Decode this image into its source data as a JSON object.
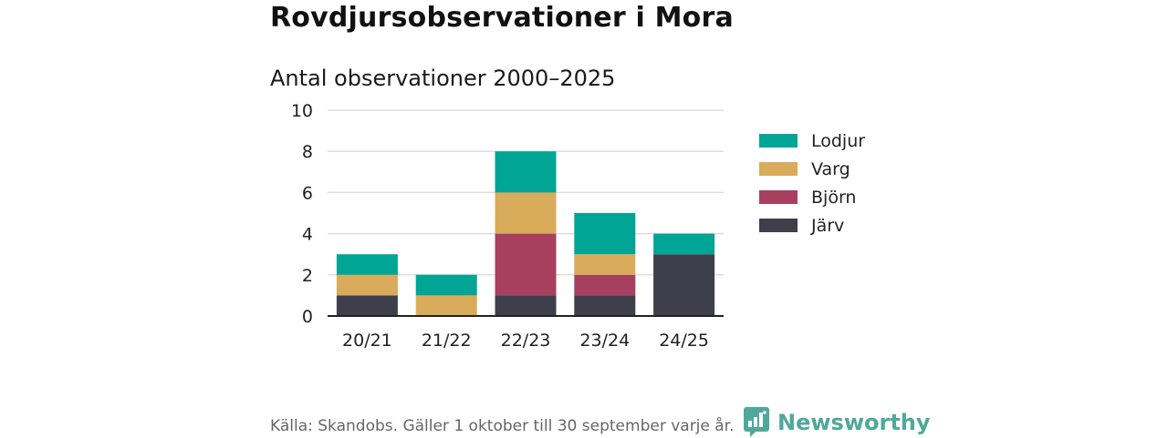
{
  "header": {
    "title": "Rovdjursobservationer i Mora",
    "subtitle": "Antal observationer 2000–2025"
  },
  "chart_data": {
    "type": "bar",
    "stacked": true,
    "title": "Antal observationer 2000–2025",
    "xlabel": "",
    "ylabel": "",
    "ylim": [
      0,
      10
    ],
    "yticks": [
      0,
      2,
      4,
      6,
      8,
      10
    ],
    "grid": true,
    "legend_position": "right",
    "categories": [
      "20/21",
      "21/22",
      "22/23",
      "23/24",
      "24/25"
    ],
    "series": [
      {
        "name": "Järv",
        "color": "#3f3f4b",
        "values": [
          1,
          0,
          1,
          1,
          3
        ]
      },
      {
        "name": "Björn",
        "color": "#a6405e",
        "values": [
          0,
          0,
          3,
          1,
          0
        ]
      },
      {
        "name": "Varg",
        "color": "#d8ac5a",
        "values": [
          1,
          1,
          2,
          1,
          0
        ]
      },
      {
        "name": "Lodjur",
        "color": "#00a596",
        "values": [
          1,
          1,
          2,
          2,
          1
        ]
      }
    ],
    "legend_order": [
      "Lodjur",
      "Varg",
      "Björn",
      "Järv"
    ]
  },
  "footer": {
    "source": "Källa: Skandobs. Gäller 1 oktober till 30 september varje år.",
    "brand": "Newsworthy"
  }
}
